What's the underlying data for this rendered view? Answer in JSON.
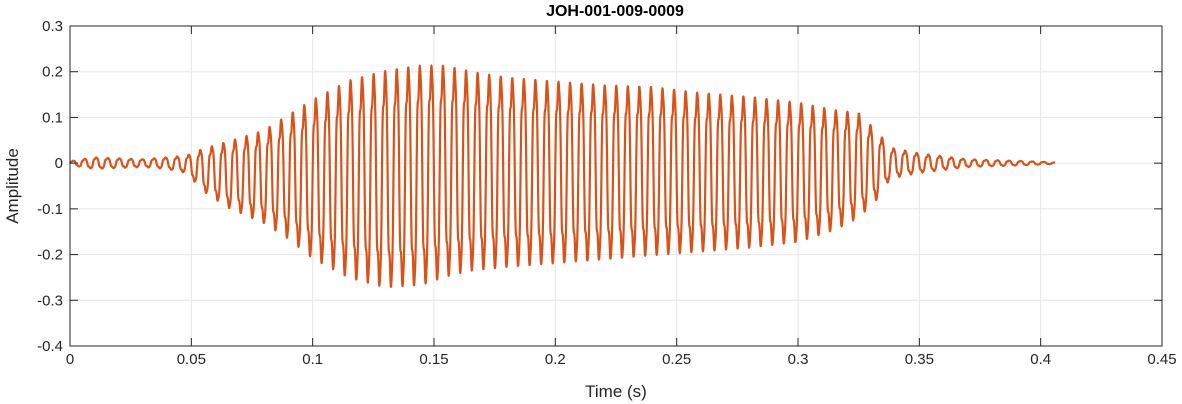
{
  "chart_data": {
    "type": "line",
    "title": "JOH-001-009-0009",
    "xlabel": "Time (s)",
    "ylabel": "Amplitude",
    "xlim": [
      0,
      0.45
    ],
    "ylim": [
      -0.4,
      0.3
    ],
    "xticks": [
      0,
      0.05,
      0.1,
      0.15,
      0.2,
      0.25,
      0.3,
      0.35,
      0.4,
      0.45
    ],
    "xtick_labels": [
      "0",
      "0.05",
      "0.1",
      "0.15",
      "0.2",
      "0.25",
      "0.3",
      "0.35",
      "0.4",
      "0.45"
    ],
    "yticks": [
      -0.4,
      -0.3,
      -0.2,
      -0.1,
      0,
      0.1,
      0.2,
      0.3
    ],
    "ytick_labels": [
      "-0.4",
      "-0.3",
      "-0.2",
      "-0.1",
      "0",
      "0.1",
      "0.2",
      "0.3"
    ],
    "grid": true,
    "series": [
      {
        "color": "#d95319",
        "signal_end": 0.406,
        "envelope": {
          "t": [
            0.0,
            0.01,
            0.03,
            0.04,
            0.048,
            0.055,
            0.065,
            0.08,
            0.09,
            0.1,
            0.115,
            0.13,
            0.145,
            0.155,
            0.165,
            0.18,
            0.2,
            0.22,
            0.24,
            0.26,
            0.28,
            0.3,
            0.315,
            0.325,
            0.333,
            0.338,
            0.35,
            0.37,
            0.39,
            0.406
          ],
          "upper": [
            0.005,
            0.015,
            0.01,
            0.015,
            0.02,
            0.04,
            0.06,
            0.09,
            0.13,
            0.17,
            0.22,
            0.245,
            0.258,
            0.255,
            0.24,
            0.225,
            0.215,
            0.205,
            0.2,
            0.185,
            0.175,
            0.16,
            0.14,
            0.13,
            0.08,
            0.04,
            0.025,
            0.01,
            0.006,
            0.002
          ],
          "lower": [
            -0.005,
            -0.015,
            -0.01,
            -0.015,
            -0.025,
            -0.07,
            -0.11,
            -0.15,
            -0.19,
            -0.24,
            -0.29,
            -0.315,
            -0.31,
            -0.29,
            -0.275,
            -0.265,
            -0.255,
            -0.245,
            -0.235,
            -0.225,
            -0.215,
            -0.2,
            -0.17,
            -0.14,
            -0.09,
            -0.04,
            -0.025,
            -0.01,
            -0.006,
            -0.002
          ]
        },
        "cycles_per_second": 210
      }
    ]
  }
}
